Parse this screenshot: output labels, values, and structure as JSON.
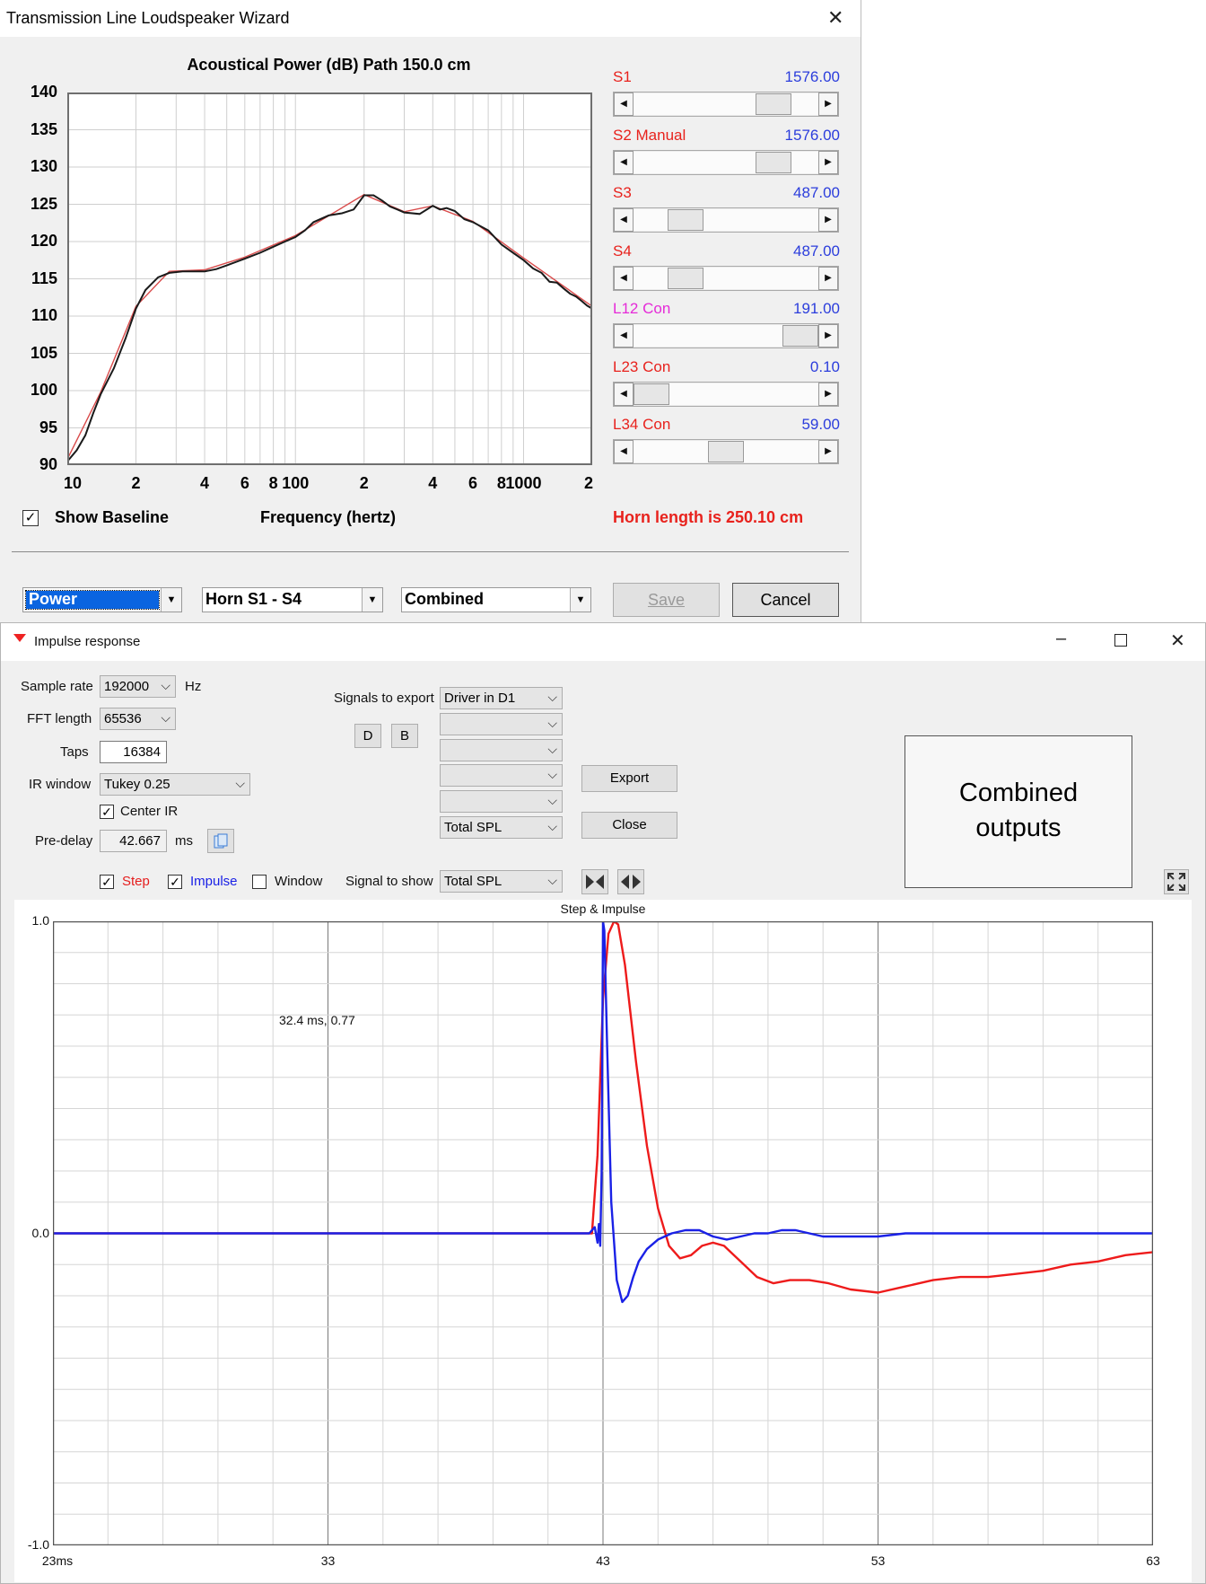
{
  "wizard": {
    "title": "Transmission Line Loudspeaker Wizard",
    "chart_title": "Acoustical Power (dB)   Path 150.0 cm",
    "x_axis_label": "Frequency (hertz)",
    "show_baseline_label": "Show Baseline",
    "show_baseline_checked": true,
    "horn_length": "Horn length is 250.10 cm",
    "sliders": [
      {
        "name": "S1",
        "value": "1576.00",
        "color": "#e8221d",
        "fraction": 0.82
      },
      {
        "name": "S2  Manual",
        "value": "1576.00",
        "color": "#e8221d",
        "fraction": 0.82
      },
      {
        "name": "S3",
        "value": "487.00",
        "color": "#e8221d",
        "fraction": 0.23
      },
      {
        "name": "S4",
        "value": "487.00",
        "color": "#e8221d",
        "fraction": 0.23
      },
      {
        "name": "L12  Con",
        "value": "191.00",
        "color": "#e52ad8",
        "fraction": 1.0
      },
      {
        "name": "L23  Con",
        "value": "0.10",
        "color": "#e8221d",
        "fraction": 0.0
      },
      {
        "name": "L34  Con",
        "value": "59.00",
        "color": "#e8221d",
        "fraction": 0.5
      }
    ],
    "combos": [
      {
        "value": "Power",
        "selected": true
      },
      {
        "value": "Horn S1 - S4",
        "selected": false
      },
      {
        "value": "Combined",
        "selected": false
      }
    ],
    "save_label": "Save",
    "cancel_label": "Cancel",
    "accent_color": "#0a64e0"
  },
  "impulse": {
    "title": "Impulse response",
    "sample_rate_label": "Sample rate",
    "sample_rate": "192000",
    "sample_rate_unit": "Hz",
    "fft_length_label": "FFT length",
    "fft_length": "65536",
    "taps_label": "Taps",
    "taps": "16384",
    "ir_window_label": "IR window",
    "ir_window": "Tukey 0.25",
    "center_ir_label": "Center IR",
    "center_ir_checked": true,
    "pre_delay_label": "Pre-delay",
    "pre_delay": "42.667",
    "pre_delay_unit": "ms",
    "signals_to_export_label": "Signals to export",
    "d_label": "D",
    "b_label": "B",
    "export_signals": [
      "Driver in D1",
      "",
      "",
      "",
      "",
      "Total SPL"
    ],
    "export_label": "Export",
    "close_label": "Close",
    "combined_outputs": "Combined outputs",
    "step_label": "Step",
    "step_checked": true,
    "impulse_label": "Impulse",
    "impulse_checked": true,
    "window_label": "Window",
    "window_checked": false,
    "signal_to_show_label": "Signal to show",
    "signal_to_show": "Total SPL",
    "cursor_readout": "32.4 ms, 0.77",
    "plot_title": "Step & Impulse"
  },
  "chart_data": [
    {
      "type": "line",
      "title": "Acoustical Power (dB)   Path 150.0 cm",
      "xlabel": "Frequency (hertz)",
      "ylabel": "",
      "xscale": "log",
      "xlim": [
        10,
        2000
      ],
      "ylim": [
        90,
        140
      ],
      "yticks": [
        "140",
        "135",
        "130",
        "125",
        "120",
        "115",
        "110",
        "105",
        "100",
        "95",
        "90"
      ],
      "xticks": [
        {
          "v": 10,
          "label": "10"
        },
        {
          "v": 20,
          "label": "2"
        },
        {
          "v": 40,
          "label": "4"
        },
        {
          "v": 60,
          "label": "6"
        },
        {
          "v": 80,
          "label": "8"
        },
        {
          "v": 100,
          "label": "100"
        },
        {
          "v": 200,
          "label": "2"
        },
        {
          "v": 400,
          "label": "4"
        },
        {
          "v": 600,
          "label": "6"
        },
        {
          "v": 800,
          "label": "8"
        },
        {
          "v": 1000,
          "label": "1000"
        },
        {
          "v": 2000,
          "label": "2"
        }
      ],
      "grid": true,
      "series": [
        {
          "color": "#1a1a1a",
          "x": [
            10,
            11,
            12,
            13,
            14,
            16,
            18,
            20,
            22,
            25,
            28,
            32,
            36,
            40,
            45,
            50,
            60,
            70,
            80,
            90,
            100,
            110,
            120,
            140,
            160,
            180,
            200,
            220,
            240,
            260,
            280,
            300,
            350,
            400,
            430,
            460,
            500,
            550,
            600,
            700,
            800,
            900,
            1000,
            1100,
            1200,
            1300,
            1400,
            1500,
            1600,
            1700,
            1800,
            1900,
            2000
          ],
          "y": [
            90.5,
            92,
            94,
            97,
            99.5,
            103,
            107,
            111,
            113.5,
            115.2,
            115.8,
            116,
            116,
            116,
            116.3,
            116.8,
            117.7,
            118.5,
            119.3,
            120,
            120.6,
            121.5,
            122.6,
            123.5,
            123.8,
            124.3,
            126.2,
            126.2,
            125.5,
            124.7,
            124.3,
            123.9,
            123.7,
            124.8,
            124.3,
            124.5,
            124.1,
            123,
            122.6,
            121.5,
            119.6,
            118.5,
            117.5,
            116.4,
            115.8,
            114.6,
            114.5,
            113.7,
            113,
            112.6,
            112,
            111.4,
            111
          ]
        },
        {
          "color": "#d94b4b",
          "x": [
            10,
            14,
            20,
            28,
            40,
            60,
            100,
            200,
            300,
            400,
            600,
            1000,
            2000
          ],
          "y": [
            90.8,
            99.8,
            111.3,
            116,
            116.2,
            117.9,
            120.8,
            126.3,
            124,
            124.8,
            122.7,
            117.8,
            111.3
          ]
        }
      ]
    },
    {
      "type": "line",
      "title": "Step & Impulse",
      "xlabel": "",
      "ylabel": "",
      "xlim": [
        23,
        63
      ],
      "ylim": [
        -1.0,
        1.0
      ],
      "xticks": [
        "23ms",
        "33",
        "43",
        "53",
        "63"
      ],
      "yticks": [
        "1.0",
        "0.0",
        "-1.0"
      ],
      "grid": true,
      "series": [
        {
          "name": "Step",
          "color": "#ee1b1b",
          "x": [
            23,
            30,
            40,
            42.6,
            42.8,
            43,
            43.2,
            43.4,
            43.55,
            43.8,
            44.2,
            44.6,
            45,
            45.4,
            45.8,
            46.2,
            46.6,
            47,
            47.4,
            48,
            48.6,
            49.2,
            49.8,
            50.5,
            51.2,
            52,
            53,
            54,
            55,
            56,
            57,
            58,
            59,
            60,
            61,
            62,
            63
          ],
          "y": [
            0,
            0,
            0,
            0,
            0.25,
            0.75,
            0.96,
            1.0,
            0.99,
            0.86,
            0.55,
            0.28,
            0.08,
            -0.04,
            -0.08,
            -0.07,
            -0.04,
            -0.03,
            -0.04,
            -0.09,
            -0.14,
            -0.16,
            -0.15,
            -0.15,
            -0.16,
            -0.18,
            -0.19,
            -0.17,
            -0.15,
            -0.14,
            -0.14,
            -0.13,
            -0.12,
            -0.1,
            -0.09,
            -0.07,
            -0.06
          ]
        },
        {
          "name": "Impulse",
          "color": "#1a21e6",
          "x": [
            23,
            30,
            40,
            42.5,
            42.7,
            42.8,
            42.85,
            42.9,
            42.95,
            43.0,
            43.05,
            43.15,
            43.3,
            43.5,
            43.7,
            43.9,
            44.1,
            44.3,
            44.6,
            45,
            45.5,
            46,
            46.5,
            47,
            47.5,
            48,
            48.5,
            49,
            49.5,
            50,
            50.5,
            51,
            52,
            53,
            54,
            55,
            56,
            58,
            60,
            62,
            63
          ],
          "y": [
            0,
            0,
            0,
            0,
            0.02,
            -0.03,
            0.03,
            -0.04,
            0.2,
            1.0,
            0.97,
            0.6,
            0.1,
            -0.15,
            -0.22,
            -0.2,
            -0.14,
            -0.09,
            -0.05,
            -0.02,
            0,
            0.01,
            0.01,
            -0.01,
            -0.02,
            -0.01,
            0,
            0,
            0.01,
            0.01,
            0,
            -0.01,
            -0.01,
            -0.01,
            0,
            0,
            0,
            0,
            0,
            0,
            0
          ]
        }
      ]
    }
  ]
}
